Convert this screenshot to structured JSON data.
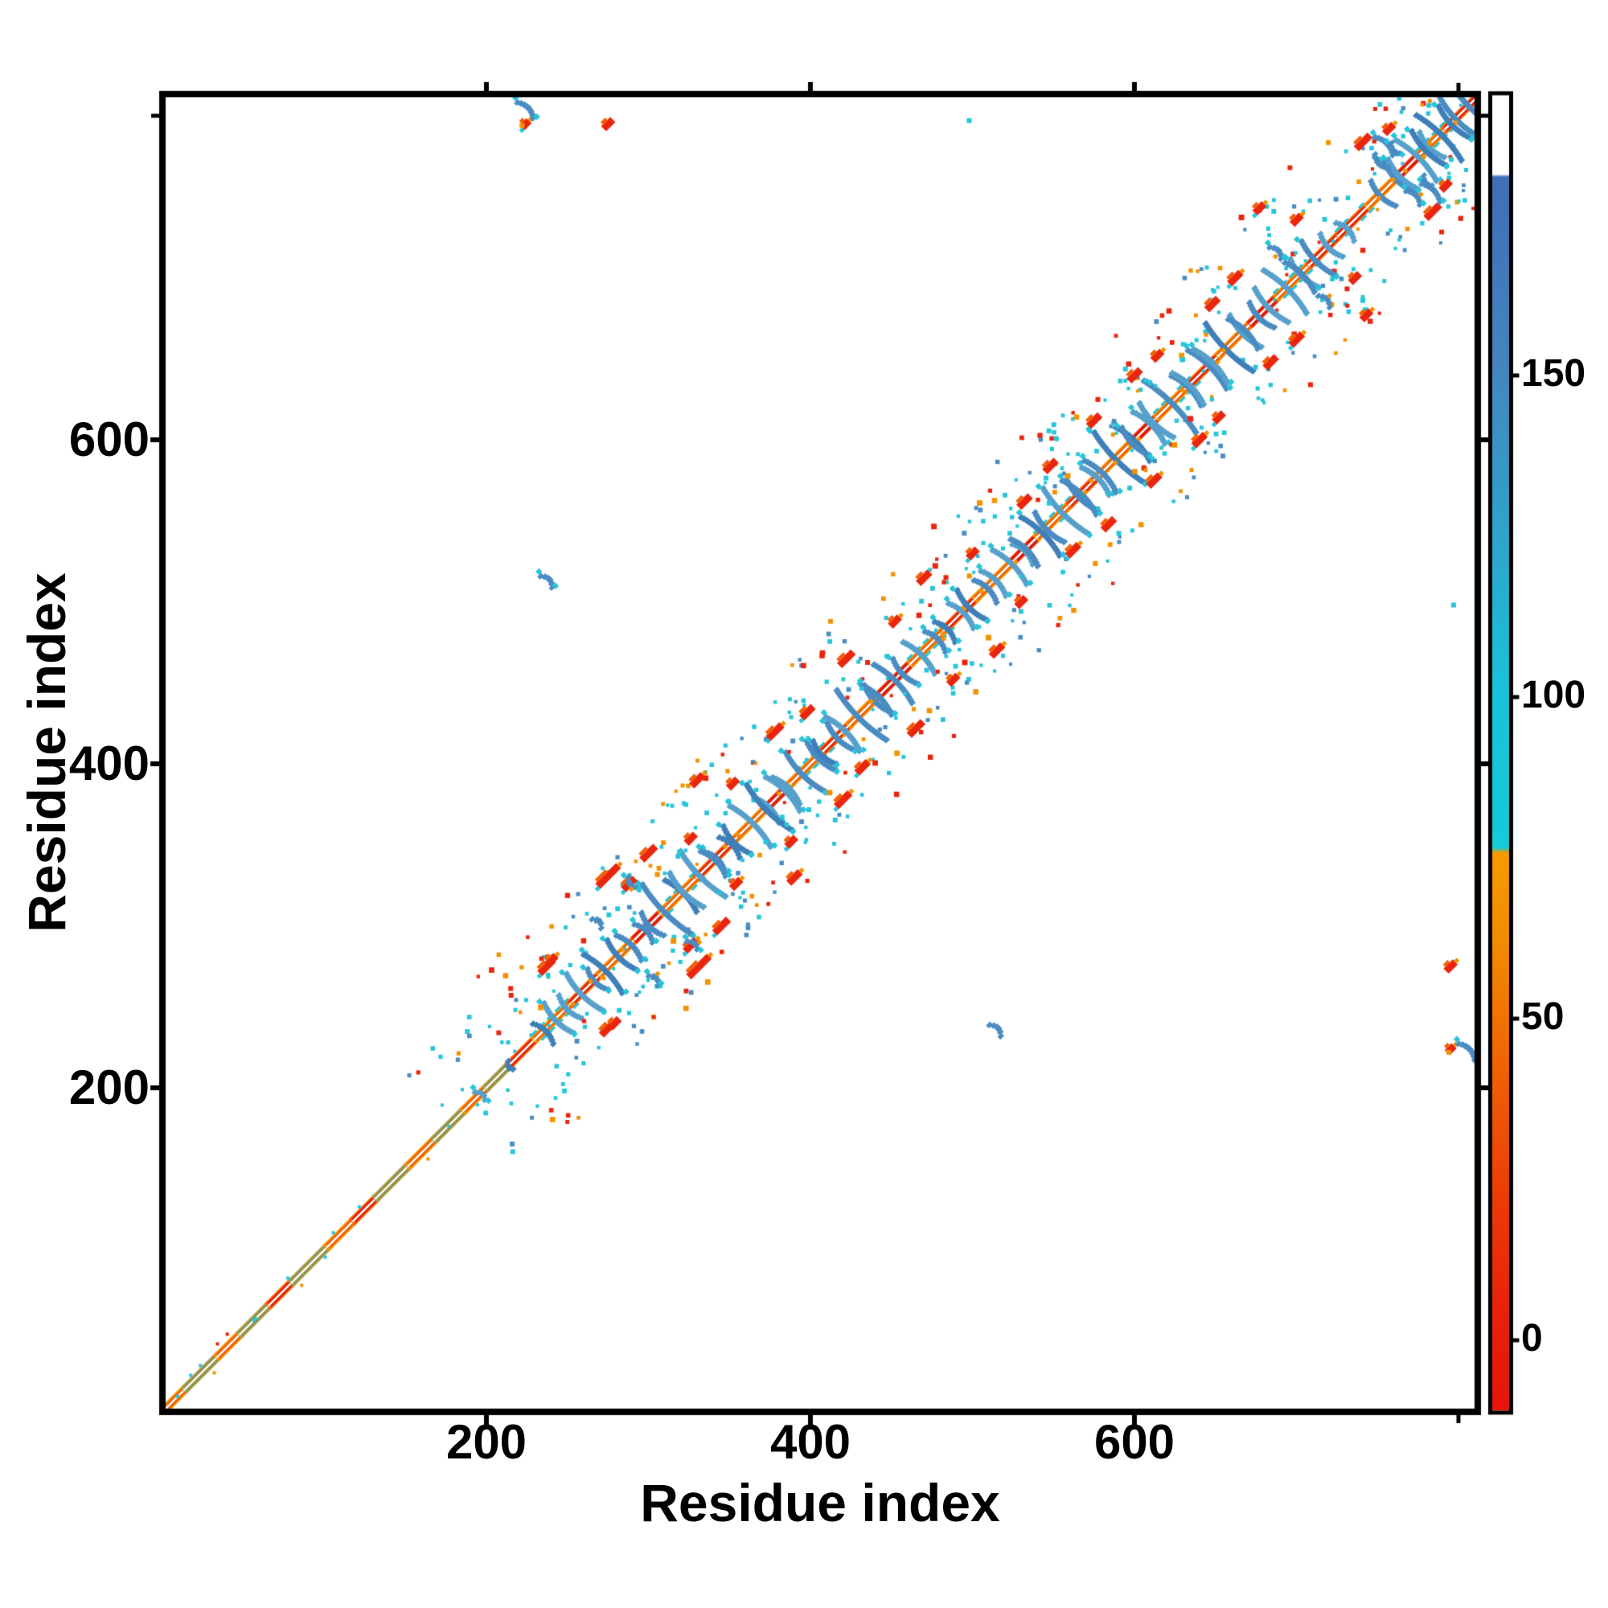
{
  "axes": {
    "x": {
      "title": "Residue index",
      "range": [
        1,
        812
      ],
      "ticks": [
        {
          "v": 200,
          "label": "200"
        },
        {
          "v": 400,
          "label": "400"
        },
        {
          "v": 600,
          "label": "600"
        }
      ],
      "minor_ticks": [
        800
      ]
    },
    "y": {
      "title": "Residue index",
      "range": [
        1,
        812
      ],
      "ticks": [
        {
          "v": 600,
          "label": "600"
        },
        {
          "v": 400,
          "label": "400"
        },
        {
          "v": 200,
          "label": "200"
        }
      ],
      "minor_ticks": [
        800
      ]
    }
  },
  "colorbar": {
    "ticks": [
      {
        "v": 150,
        "label": "150"
      },
      {
        "v": 100,
        "label": "100"
      },
      {
        "v": 50,
        "label": "50"
      },
      {
        "v": 0,
        "label": "0"
      }
    ],
    "value_range": [
      -10,
      192
    ],
    "stops": [
      [
        0.0,
        "#ffffff"
      ],
      [
        0.06,
        "#ffffff"
      ],
      [
        0.062,
        "#3f6fb5"
      ],
      [
        0.2,
        "#4584bf"
      ],
      [
        0.33,
        "#2fa3cb"
      ],
      [
        0.45,
        "#19c2da"
      ],
      [
        0.572,
        "#13ccd9"
      ],
      [
        0.576,
        "#f79b00"
      ],
      [
        0.65,
        "#f28a00"
      ],
      [
        0.74,
        "#f06203"
      ],
      [
        0.84,
        "#ec3b07"
      ],
      [
        0.93,
        "#e9200b"
      ],
      [
        1.0,
        "#e8140c"
      ]
    ]
  },
  "palette": {
    "steelblue": "#4a8cc2",
    "steelblue2": "#3f7fba",
    "steelblue3": "#57a0cc",
    "cyan": "#27c5da",
    "orange": "#f39200",
    "orangered": "#f2600a",
    "red": "#e9250e",
    "olive": "#a79f52",
    "white": "#ffffff",
    "accent_orange": "#ef5500",
    "accent_red": "#d81600",
    "accent_olive": "#8f8a40"
  },
  "chart_data": {
    "type": "heatmap",
    "subtype": "protein-contact-map",
    "symmetric": true,
    "xlabel": "Residue index",
    "ylabel": "Residue index",
    "n_residues": 812,
    "diagonal_segments": [
      [
        0,
        14,
        "orange"
      ],
      [
        14,
        34,
        "olive"
      ],
      [
        34,
        48,
        "orange"
      ],
      [
        48,
        66,
        "olive"
      ],
      [
        66,
        80,
        "orangered"
      ],
      [
        80,
        102,
        "olive"
      ],
      [
        102,
        118,
        "orange"
      ],
      [
        118,
        132,
        "orangered"
      ],
      [
        132,
        152,
        "olive"
      ],
      [
        152,
        168,
        "orange"
      ],
      [
        168,
        186,
        "olive"
      ],
      [
        186,
        200,
        "orange"
      ],
      [
        200,
        214,
        "olive"
      ],
      [
        214,
        230,
        "orangered"
      ],
      [
        230,
        252,
        "orange_cyan"
      ],
      [
        252,
        270,
        "orangered"
      ],
      [
        270,
        292,
        "orange"
      ],
      [
        292,
        308,
        "red"
      ],
      [
        308,
        330,
        "orange_cyan"
      ],
      [
        330,
        352,
        "orangered"
      ],
      [
        352,
        372,
        "orange"
      ],
      [
        372,
        388,
        "red"
      ],
      [
        388,
        408,
        "orange_cyan"
      ],
      [
        408,
        424,
        "orangered"
      ],
      [
        424,
        444,
        "orange"
      ],
      [
        444,
        462,
        "red"
      ],
      [
        462,
        484,
        "orange_cyan"
      ],
      [
        484,
        502,
        "orangered"
      ],
      [
        502,
        524,
        "orange"
      ],
      [
        524,
        540,
        "red"
      ],
      [
        540,
        560,
        "orange_cyan"
      ],
      [
        560,
        578,
        "orangered"
      ],
      [
        578,
        598,
        "orange"
      ],
      [
        598,
        614,
        "red"
      ],
      [
        614,
        634,
        "orange_cyan"
      ],
      [
        634,
        652,
        "orangered"
      ],
      [
        652,
        672,
        "orange"
      ],
      [
        672,
        688,
        "red"
      ],
      [
        688,
        708,
        "orange_cyan"
      ],
      [
        708,
        726,
        "orangered"
      ],
      [
        726,
        744,
        "cyan_edge"
      ],
      [
        744,
        762,
        "orange"
      ],
      [
        762,
        776,
        "red"
      ],
      [
        776,
        792,
        "orange_cyan"
      ],
      [
        792,
        812,
        "orangered"
      ]
    ],
    "clusters": [
      {
        "c": 196,
        "arms": [
          [
            0,
            9
          ]
        ]
      },
      {
        "c": 214,
        "arms": [
          [
            0,
            7
          ]
        ]
      },
      {
        "c": 240,
        "arms": [
          [
            -5,
            18
          ],
          [
            3,
            26
          ]
        ]
      },
      {
        "c": 256,
        "arms": [
          [
            -6,
            20
          ],
          [
            3,
            32
          ],
          [
            11,
            18
          ]
        ]
      },
      {
        "c": 277,
        "arms": [
          [
            -5,
            34
          ],
          [
            5,
            26
          ]
        ]
      },
      {
        "c": 292,
        "arms": [
          [
            -4,
            22
          ],
          [
            5,
            16
          ]
        ]
      },
      {
        "c": 313,
        "arms": [
          [
            -12,
            20
          ],
          [
            -3,
            44
          ],
          [
            7,
            28
          ]
        ]
      },
      {
        "c": 327,
        "arms": [
          [
            -5,
            30
          ],
          [
            5,
            40
          ],
          [
            14,
            18
          ]
        ]
      },
      {
        "c": 344,
        "arms": [
          [
            -4,
            22
          ],
          [
            6,
            18
          ]
        ]
      },
      {
        "c": 361,
        "arms": [
          [
            -8,
            24
          ],
          [
            2,
            36
          ],
          [
            12,
            22
          ]
        ]
      },
      {
        "c": 379,
        "arms": [
          [
            -6,
            40
          ],
          [
            4,
            30
          ]
        ]
      },
      {
        "c": 395,
        "arms": [
          [
            -10,
            24
          ],
          [
            0,
            34
          ],
          [
            10,
            26
          ]
        ]
      },
      {
        "c": 412,
        "arms": [
          [
            -5,
            20
          ],
          [
            5,
            24
          ]
        ]
      },
      {
        "c": 428,
        "arms": [
          [
            -8,
            30
          ],
          [
            2,
            44
          ],
          [
            12,
            24
          ]
        ]
      },
      {
        "c": 447,
        "arms": [
          [
            -6,
            26
          ],
          [
            4,
            34
          ]
        ]
      },
      {
        "c": 465,
        "arms": [
          [
            -8,
            22
          ],
          [
            2,
            28
          ],
          [
            12,
            18
          ]
        ]
      },
      {
        "c": 487,
        "arms": [
          [
            -4,
            18
          ],
          [
            6,
            22
          ]
        ]
      },
      {
        "c": 503,
        "arms": [
          [
            -5,
            26
          ],
          [
            5,
            20
          ]
        ]
      },
      {
        "c": 521,
        "arms": [
          [
            -8,
            22
          ],
          [
            2,
            30
          ],
          [
            10,
            18
          ]
        ]
      },
      {
        "c": 538,
        "arms": [
          [
            -6,
            24
          ],
          [
            4,
            34
          ]
        ]
      },
      {
        "c": 556,
        "arms": [
          [
            -10,
            26
          ],
          [
            0,
            40
          ],
          [
            10,
            28
          ]
        ]
      },
      {
        "c": 572,
        "arms": [
          [
            -6,
            30
          ],
          [
            4,
            24
          ]
        ]
      },
      {
        "c": 589,
        "arms": [
          [
            -10,
            28
          ],
          [
            0,
            44
          ],
          [
            10,
            30
          ]
        ]
      },
      {
        "c": 605,
        "arms": [
          [
            -6,
            24
          ],
          [
            4,
            28
          ]
        ]
      },
      {
        "c": 622,
        "arms": [
          [
            -10,
            30
          ],
          [
            0,
            46
          ],
          [
            10,
            26
          ]
        ]
      },
      {
        "c": 639,
        "arms": [
          [
            -6,
            28
          ],
          [
            6,
            34
          ]
        ]
      },
      {
        "c": 657,
        "arms": [
          [
            -10,
            30
          ],
          [
            0,
            42
          ],
          [
            10,
            28
          ]
        ]
      },
      {
        "c": 673,
        "arms": [
          [
            -6,
            26
          ],
          [
            4,
            22
          ]
        ]
      },
      {
        "c": 691,
        "arms": [
          [
            -8,
            30
          ],
          [
            2,
            38
          ],
          [
            12,
            24
          ]
        ]
      },
      {
        "c": 708,
        "arms": [
          [
            -6,
            26
          ],
          [
            4,
            30
          ]
        ]
      },
      {
        "c": 724,
        "arms": [
          [
            -4,
            20
          ],
          [
            6,
            16
          ]
        ]
      },
      {
        "c": 758,
        "arms": [
          [
            -6,
            22
          ],
          [
            4,
            28
          ]
        ]
      },
      {
        "c": 772,
        "arms": [
          [
            -8,
            26
          ],
          [
            2,
            36
          ],
          [
            10,
            22
          ]
        ]
      },
      {
        "c": 788,
        "arms": [
          [
            -8,
            30
          ],
          [
            0,
            40
          ],
          [
            8,
            28
          ]
        ]
      },
      {
        "c": 803,
        "arms": [
          [
            -4,
            34
          ],
          [
            4,
            44
          ]
        ]
      }
    ],
    "red_blobs": [
      [
        237,
        275,
        6
      ],
      [
        275,
        331,
        9
      ],
      [
        240,
        279,
        4
      ],
      [
        288,
        326,
        5
      ],
      [
        300,
        345,
        6
      ],
      [
        326,
        354,
        4
      ],
      [
        330,
        390,
        5
      ],
      [
        352,
        388,
        4
      ],
      [
        378,
        420,
        6
      ],
      [
        398,
        432,
        5
      ],
      [
        422,
        465,
        6
      ],
      [
        452,
        488,
        4
      ],
      [
        470,
        515,
        5
      ],
      [
        500,
        530,
        4
      ],
      [
        532,
        562,
        5
      ],
      [
        548,
        584,
        5
      ],
      [
        575,
        612,
        5
      ],
      [
        600,
        640,
        5
      ],
      [
        614,
        652,
        4
      ],
      [
        648,
        684,
        5
      ],
      [
        662,
        700,
        5
      ],
      [
        677,
        743,
        4
      ],
      [
        700,
        736,
        4
      ],
      [
        741,
        784,
        6
      ],
      [
        757,
        792,
        4
      ],
      [
        275,
        795,
        4
      ],
      [
        795,
        224,
        3
      ]
    ],
    "blue_dashes": [
      [
        224,
        805,
        14
      ],
      [
        237,
        514,
        10
      ],
      [
        268,
        303,
        8
      ],
      [
        289,
        327,
        9
      ],
      [
        687,
        717,
        10
      ],
      [
        754,
        783,
        16
      ],
      [
        751,
        772,
        12
      ],
      [
        760,
        780,
        9
      ]
    ],
    "dots": [
      [
        222,
        794,
        "orange"
      ],
      [
        275,
        795,
        "red"
      ],
      [
        677,
        743,
        "red"
      ],
      [
        498,
        797,
        "cyan"
      ],
      [
        686,
        741,
        "cyan"
      ],
      [
        303,
        268,
        "steelblue"
      ]
    ],
    "noise": {
      "seed": 42,
      "cyan_per_cluster": 8,
      "warm_per_cluster": 5,
      "blue_per_cluster": 3
    }
  }
}
